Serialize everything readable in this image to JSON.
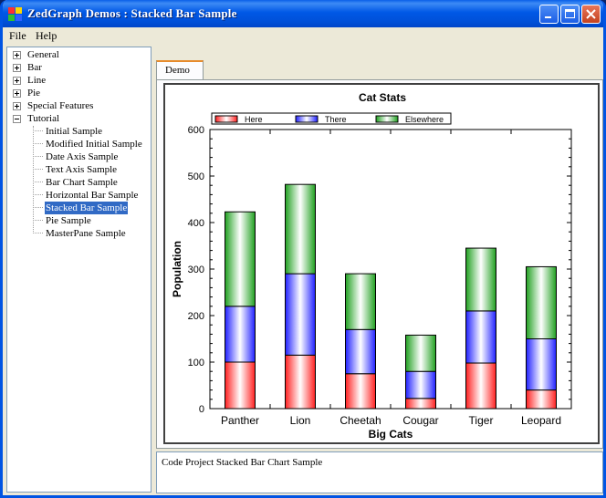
{
  "window": {
    "title": "ZedGraph Demos : Stacked Bar Sample",
    "buttons": [
      "minimize",
      "maximize",
      "close"
    ]
  },
  "menu": {
    "file": "File",
    "help": "Help"
  },
  "tree": {
    "items": [
      {
        "label": "General",
        "expanded": false
      },
      {
        "label": "Bar",
        "expanded": false
      },
      {
        "label": "Line",
        "expanded": false
      },
      {
        "label": "Pie",
        "expanded": false
      },
      {
        "label": "Special Features",
        "expanded": false
      },
      {
        "label": "Tutorial",
        "expanded": true
      }
    ],
    "children": [
      "Initial Sample",
      "Modified Initial Sample",
      "Date Axis Sample",
      "Text Axis Sample",
      "Bar Chart Sample",
      "Horizontal Bar Sample",
      "Stacked Bar Sample",
      "Pie Sample",
      "MasterPane Sample"
    ],
    "selected_child": "Stacked Bar Sample"
  },
  "tabs": {
    "demo": "Demo"
  },
  "code_text": "Code Project Stacked Bar Chart Sample",
  "chart_data": {
    "type": "bar",
    "stacked": true,
    "title": "Cat Stats",
    "xlabel": "Big Cats",
    "ylabel": "Population",
    "categories": [
      "Panther",
      "Lion",
      "Cheetah",
      "Cougar",
      "Tiger",
      "Leopard"
    ],
    "series": [
      {
        "name": "Here",
        "color": "#ff2020",
        "values": [
          100,
          115,
          75,
          22,
          98,
          40
        ]
      },
      {
        "name": "There",
        "color": "#2020ff",
        "values": [
          120,
          175,
          95,
          58,
          112,
          110
        ]
      },
      {
        "name": "Elsewhere",
        "color": "#20a020",
        "values": [
          203,
          192,
          120,
          78,
          135,
          155
        ]
      }
    ],
    "ylim": [
      0,
      600
    ],
    "yticks": [
      0,
      100,
      200,
      300,
      400,
      500,
      600
    ],
    "legend_position": "top",
    "grid": false
  }
}
